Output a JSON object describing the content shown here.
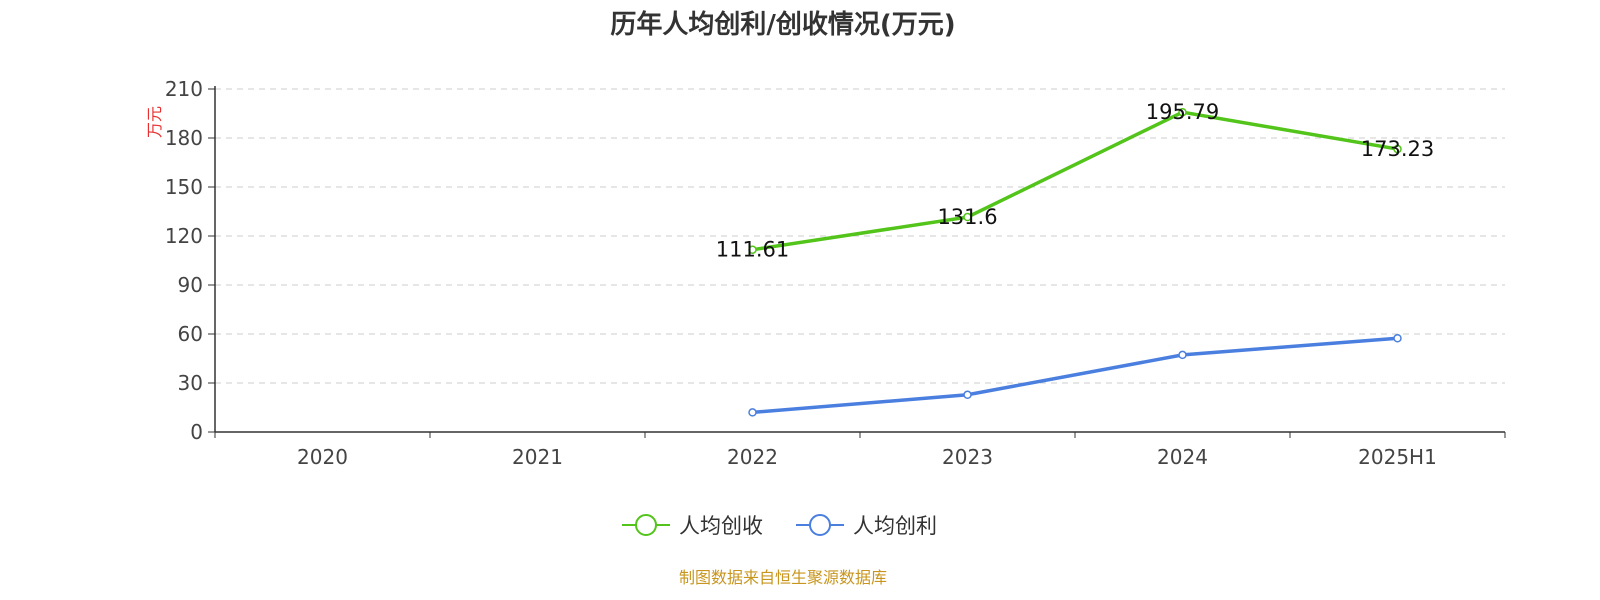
{
  "chart_data": {
    "type": "line",
    "title": "历年人均创利/创收情况(万元)",
    "ylabel": "万元",
    "xlabel": "",
    "categories": [
      "2020",
      "2021",
      "2022",
      "2023",
      "2024",
      "2025H1"
    ],
    "ylim": [
      0,
      210
    ],
    "yticks": [
      0,
      30,
      60,
      90,
      120,
      150,
      180,
      210
    ],
    "grid": true,
    "legend_position": "bottom",
    "series": [
      {
        "name": "人均创收",
        "color": "#52c41a",
        "values": [
          null,
          null,
          111.61,
          131.6,
          195.79,
          173.23
        ],
        "labels": [
          "",
          "",
          "111.61",
          "131.6",
          "195.79",
          "173.23"
        ]
      },
      {
        "name": "人均创利",
        "color": "#4a7fe0",
        "values": [
          null,
          null,
          12,
          22.8,
          47.2,
          57.4
        ],
        "labels": [
          "",
          "",
          "",
          "",
          "",
          ""
        ]
      }
    ]
  },
  "source": "制图数据来自恒生聚源数据库"
}
